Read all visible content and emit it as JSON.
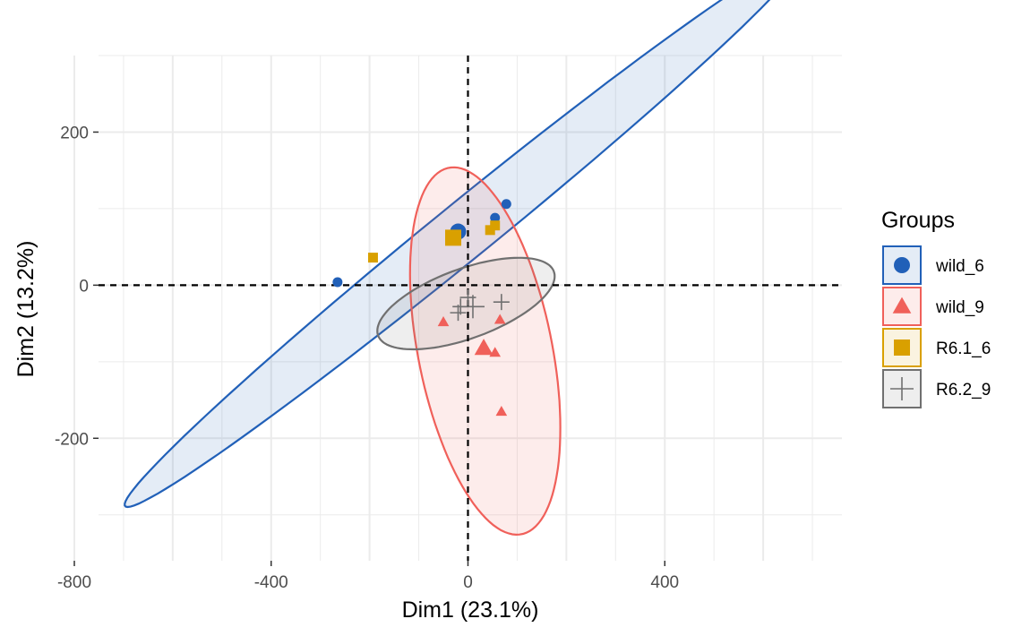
{
  "chart_data": {
    "type": "scatter",
    "title": "",
    "xlabel": "Dim1 (23.1%)",
    "ylabel": "Dim2 (13.2%)",
    "xlim": [
      -800,
      760
    ],
    "ylim": [
      -360,
      300
    ],
    "x_ticks": [
      -800,
      -400,
      0,
      400
    ],
    "y_ticks": [
      -200,
      0,
      200
    ],
    "x_tick_labels": [
      "-800",
      "-400",
      "0",
      "400"
    ],
    "y_tick_labels": [
      "-200",
      "0",
      "200"
    ],
    "grid": true,
    "reference_lines": {
      "x": 0,
      "y": 0,
      "style": "dashed"
    },
    "legend": {
      "title": "Groups",
      "position": "right"
    },
    "series": [
      {
        "name": "wild_6",
        "color": "#2160b8",
        "shape": "circle",
        "points": [
          [
            -265,
            4
          ],
          [
            55,
            88
          ],
          [
            78,
            106
          ]
        ],
        "centroid": [
          -20,
          70
        ],
        "ellipse": {
          "center": [
            -10,
            70
          ],
          "semi_major": 775,
          "semi_minor": 42,
          "angle_deg": 27.5
        }
      },
      {
        "name": "wild_9",
        "color": "#f0605a",
        "shape": "triangle",
        "points": [
          [
            -50,
            -48
          ],
          [
            65,
            -45
          ],
          [
            35,
            -85
          ],
          [
            55,
            -88
          ],
          [
            68,
            -165
          ]
        ],
        "centroid": [
          32,
          -82
        ],
        "ellipse": {
          "center": [
            35,
            -86
          ],
          "semi_major": 252,
          "semi_minor": 132,
          "angle_deg": 111
        }
      },
      {
        "name": "R6.1_6",
        "color": "#d9a000",
        "shape": "square",
        "points": [
          [
            -193,
            36
          ],
          [
            45,
            72
          ],
          [
            55,
            78
          ]
        ],
        "centroid": [
          -30,
          62
        ]
      },
      {
        "name": "R6.2_9",
        "color": "#707070",
        "shape": "cross",
        "points": [
          [
            0,
            -16
          ],
          [
            -20,
            -36
          ],
          [
            -15,
            -28
          ],
          [
            68,
            -22
          ]
        ],
        "centroid": [
          10,
          -28
        ],
        "ellipse": {
          "center": [
            -4,
            -24
          ],
          "semi_major": 184,
          "semi_minor": 47,
          "angle_deg": 12
        }
      }
    ]
  }
}
